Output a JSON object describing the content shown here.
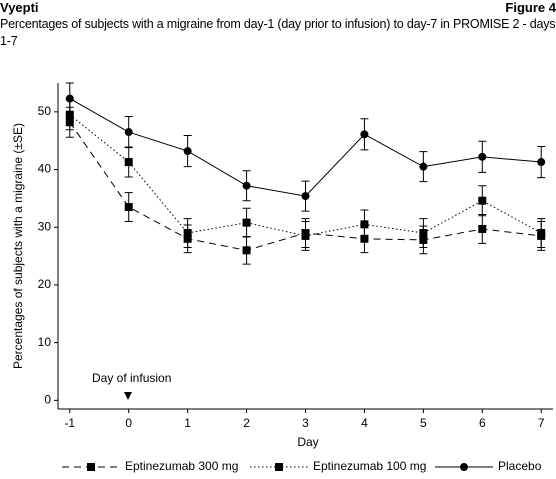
{
  "header": {
    "brand": "Vyepti",
    "figure": "Figure 4"
  },
  "chart_data": {
    "type": "line",
    "title": "Percentages of subjects with a migraine from day-1 (day prior to infusion) to day-7 in PROMISE 2 - days 1-7",
    "x_label": "Day",
    "y_label": "Percentages of subjects with a migraine (±SE)",
    "annotation": "Day of infusion",
    "x": [
      -1,
      0,
      1,
      2,
      3,
      4,
      5,
      6,
      7
    ],
    "xlim": [
      -1.2,
      7.2
    ],
    "xticks": [
      -1,
      0,
      1,
      2,
      3,
      4,
      5,
      6,
      7
    ],
    "ylim": [
      -1.5,
      55
    ],
    "yticks": [
      0,
      10,
      20,
      30,
      40,
      50
    ],
    "grid": false,
    "legend": "bottom",
    "series": [
      {
        "name": "Eptinezumab 300 mg",
        "color": "#000000",
        "marker": "square",
        "dash": "dashed",
        "values": [
          48.2,
          33.5,
          28,
          26,
          29,
          28,
          27.8,
          29.7,
          28.5
        ],
        "errors": [
          2.6,
          2.5,
          2.4,
          2.4,
          2.5,
          2.4,
          2.4,
          2.5,
          2.5
        ]
      },
      {
        "name": "Eptinezumab 100 mg",
        "color": "#000000",
        "marker": "square",
        "dash": "dotted",
        "values": [
          49.5,
          41.3,
          29,
          30.8,
          28.5,
          30.5,
          29,
          34.6,
          29
        ],
        "errors": [
          2.6,
          2.6,
          2.5,
          2.5,
          2.5,
          2.5,
          2.5,
          2.6,
          2.5
        ]
      },
      {
        "name": "Placebo",
        "color": "#000000",
        "marker": "circle",
        "dash": "solid",
        "values": [
          52.3,
          46.5,
          43.2,
          37.2,
          35.4,
          46.1,
          40.5,
          42.2,
          41.3
        ],
        "errors": [
          2.7,
          2.7,
          2.7,
          2.6,
          2.6,
          2.7,
          2.6,
          2.7,
          2.7
        ]
      }
    ]
  }
}
